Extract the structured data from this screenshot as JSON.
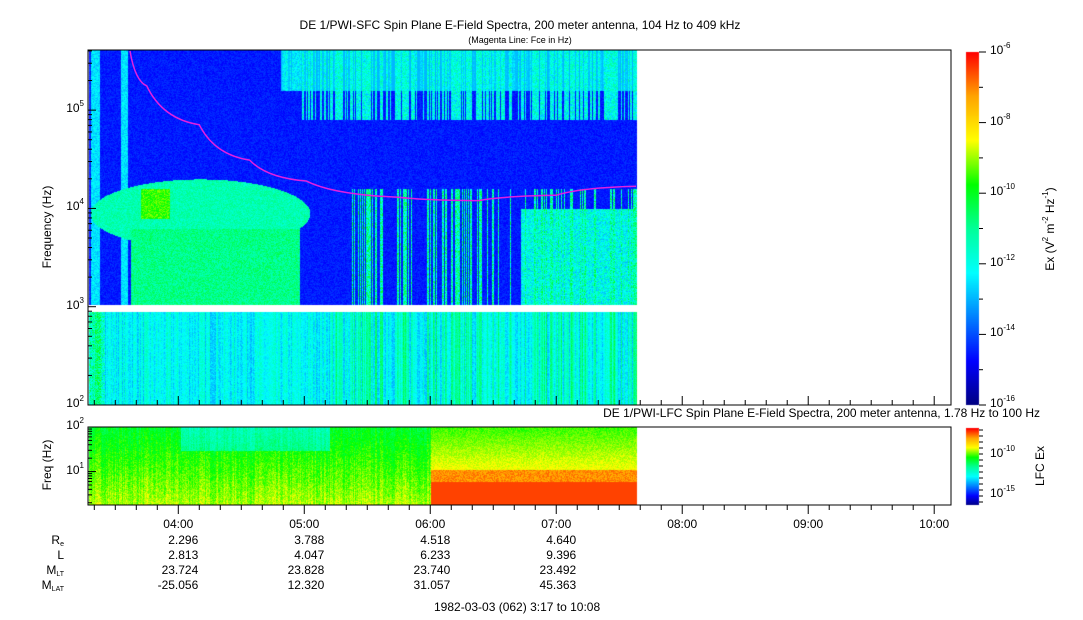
{
  "chart_data": [
    {
      "type": "heatmap",
      "title": "DE 1/PWI-SFC  Spin Plane E-Field Spectra, 200 meter antenna, 104 Hz to 409 kHz",
      "subtitle": "(Magenta Line: Fce in Hz)",
      "ylabel": "Frequency (Hz)",
      "yscale": "log",
      "ylim": [
        100,
        409000
      ],
      "yticks": [
        {
          "base": "10",
          "exp": "5"
        },
        {
          "base": "10",
          "exp": "4"
        },
        {
          "base": "10",
          "exp": "3"
        },
        {
          "base": "10",
          "exp": "2"
        }
      ],
      "xlim": [
        "03:17",
        "10:08"
      ],
      "data_end": "07:38",
      "colorbar": {
        "label_main": "Ex (V",
        "label_exp1": "2",
        "label_mid": " m",
        "label_exp2": "-2",
        "label_mid2": " Hz",
        "label_exp3": "-1",
        "label_end": ")",
        "scale": "log",
        "range": [
          1e-16,
          1e-06
        ],
        "ticks": [
          {
            "base": "10",
            "exp": "-6"
          },
          {
            "base": "10",
            "exp": "-8"
          },
          {
            "base": "10",
            "exp": "-10"
          },
          {
            "base": "10",
            "exp": "-12"
          },
          {
            "base": "10",
            "exp": "-14"
          },
          {
            "base": "10",
            "exp": "-16"
          }
        ]
      },
      "fce_line": {
        "color": "#e020e0",
        "points": [
          {
            "t": "03:37",
            "f": 400000
          },
          {
            "t": "03:45",
            "f": 176000
          },
          {
            "t": "04:10",
            "f": 71000
          },
          {
            "t": "04:34",
            "f": 31000
          },
          {
            "t": "05:01",
            "f": 19000
          },
          {
            "t": "05:45",
            "f": 13000
          },
          {
            "t": "06:23",
            "f": 12000
          },
          {
            "t": "07:00",
            "f": 13600
          },
          {
            "t": "07:38",
            "f": 16800
          }
        ]
      }
    },
    {
      "type": "heatmap",
      "title": "DE 1/PWI-LFC  Spin Plane E-Field Spectra, 200 meter antenna, 1.78 Hz to 100 Hz",
      "ylabel": "Freq (Hz)",
      "yscale": "log",
      "ylim": [
        1.78,
        100
      ],
      "yticks": [
        {
          "base": "10",
          "exp": "2"
        },
        {
          "base": "10",
          "exp": "1"
        }
      ],
      "xlim": [
        "03:17",
        "10:08"
      ],
      "data_end": "07:38",
      "colorbar": {
        "label": "LFC Ex",
        "scale": "log",
        "ticks": [
          {
            "base": "10",
            "exp": "-10"
          },
          {
            "base": "10",
            "exp": "-15"
          }
        ]
      }
    }
  ],
  "colormap": [
    "#000080",
    "#0000ff",
    "#0080ff",
    "#00ffff",
    "#00ff99",
    "#00ff00",
    "#ffff00",
    "#ffa500",
    "#ff0000"
  ],
  "x_axis": {
    "ticks": [
      "04:00",
      "05:00",
      "06:00",
      "07:00",
      "08:00",
      "09:00",
      "10:00"
    ]
  },
  "ephemeris": {
    "rows": [
      {
        "main": "R",
        "sub": "e",
        "values": [
          "2.296",
          "3.788",
          "4.518",
          "4.640"
        ]
      },
      {
        "main": "L",
        "sub": "",
        "values": [
          "2.813",
          "4.047",
          "6.233",
          "9.396"
        ]
      },
      {
        "main": "M",
        "sub": "LT",
        "values": [
          "23.724",
          "23.828",
          "23.740",
          "23.492"
        ]
      },
      {
        "main": "M",
        "sub": "LAT",
        "values": [
          "-25.056",
          "12.320",
          "31.057",
          "45.363"
        ]
      }
    ],
    "footer": "1982-03-03 (062) 3:17 to 10:08"
  }
}
